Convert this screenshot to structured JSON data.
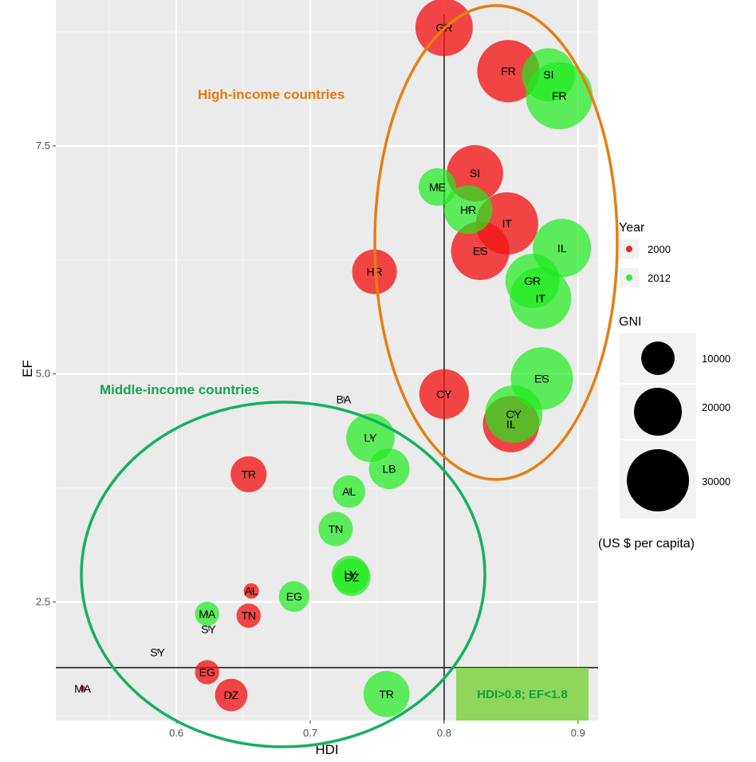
{
  "chart_data": {
    "type": "scatter",
    "xlabel": "HDI",
    "ylabel": "EF",
    "xlim": [
      0.51,
      0.915
    ],
    "ylim": [
      1.2,
      9.1
    ],
    "x_ticks": [
      "0.6",
      "0.7",
      "0.8",
      "0.9"
    ],
    "y_ticks": [
      "2.5",
      "5.0",
      "7.5"
    ],
    "reference_lines": {
      "vertical_x": 0.8,
      "horizontal_y": 1.78
    },
    "colors": {
      "2000": "#f00000",
      "2012": "#22ee22",
      "panel": "#ebebeb"
    },
    "legend_year": {
      "title": "Year",
      "items": [
        "2000",
        "2012"
      ]
    },
    "legend_gni": {
      "title": "GNI",
      "items": [
        "10000",
        "20000",
        "30000"
      ]
    },
    "gni_unit": "(US $ per capita)",
    "annotations": {
      "high_income": "High-income countries",
      "middle_income": "Middle-income countries",
      "threshold_box": "HDI>0.8; EF<1.8"
    },
    "series": [
      {
        "name": "2000",
        "points": [
          {
            "label": "GR",
            "x": 0.8,
            "y": 8.8,
            "gni": 28000
          },
          {
            "label": "FR",
            "x": 0.848,
            "y": 8.32,
            "gni": 33000
          },
          {
            "label": "SI",
            "x": 0.823,
            "y": 7.2,
            "gni": 27000
          },
          {
            "label": "IT",
            "x": 0.847,
            "y": 6.65,
            "gni": 33000
          },
          {
            "label": "ES",
            "x": 0.827,
            "y": 6.35,
            "gni": 29000
          },
          {
            "label": "HR",
            "x": 0.748,
            "y": 6.12,
            "gni": 17000
          },
          {
            "label": "CY",
            "x": 0.8,
            "y": 4.78,
            "gni": 21000
          },
          {
            "label": "IL",
            "x": 0.85,
            "y": 4.45,
            "gni": 27000
          },
          {
            "label": "TR",
            "x": 0.654,
            "y": 3.9,
            "gni": 11000
          },
          {
            "label": "AL",
            "x": 0.656,
            "y": 2.62,
            "gni": 2000
          },
          {
            "label": "TN",
            "x": 0.654,
            "y": 2.35,
            "gni": 5000
          },
          {
            "label": "EG",
            "x": 0.623,
            "y": 1.73,
            "gni": 5000
          },
          {
            "label": "DZ",
            "x": 0.641,
            "y": 1.48,
            "gni": 9000
          },
          {
            "label": "MA",
            "x": 0.53,
            "y": 1.55,
            "gni": 300
          }
        ]
      },
      {
        "name": "2012",
        "points": [
          {
            "label": "SI",
            "x": 0.878,
            "y": 8.28,
            "gni": 24000
          },
          {
            "label": "FR",
            "x": 0.886,
            "y": 8.05,
            "gni": 38000
          },
          {
            "label": "ME",
            "x": 0.795,
            "y": 7.05,
            "gni": 12000
          },
          {
            "label": "HR",
            "x": 0.818,
            "y": 6.8,
            "gni": 20000
          },
          {
            "label": "IL",
            "x": 0.888,
            "y": 6.38,
            "gni": 29000
          },
          {
            "label": "GR",
            "x": 0.866,
            "y": 6.02,
            "gni": 25000
          },
          {
            "label": "IT",
            "x": 0.872,
            "y": 5.83,
            "gni": 32000
          },
          {
            "label": "ES",
            "x": 0.873,
            "y": 4.95,
            "gni": 33000
          },
          {
            "label": "CY",
            "x": 0.852,
            "y": 4.56,
            "gni": 28000
          },
          {
            "label": "LY",
            "x": 0.745,
            "y": 4.3,
            "gni": 20000
          },
          {
            "label": "LB",
            "x": 0.759,
            "y": 3.96,
            "gni": 14000
          },
          {
            "label": "AL",
            "x": 0.729,
            "y": 3.71,
            "gni": 9000
          },
          {
            "label": "TN",
            "x": 0.719,
            "y": 3.3,
            "gni": 10000
          },
          {
            "label": "LY",
            "x": 0.73,
            "y": 2.8,
            "gni": 12000
          },
          {
            "label": "DZ",
            "x": 0.731,
            "y": 2.77,
            "gni": 12000
          },
          {
            "label": "EG",
            "x": 0.688,
            "y": 2.56,
            "gni": 8000
          },
          {
            "label": "MA",
            "x": 0.623,
            "y": 2.37,
            "gni": 5000
          },
          {
            "label": "TR",
            "x": 0.757,
            "y": 1.49,
            "gni": 18000
          }
        ]
      },
      {
        "name": "unmarked",
        "points": [
          {
            "label": "BA",
            "x": 0.725,
            "y": 4.72,
            "gni": 0
          },
          {
            "label": "SY",
            "x": 0.624,
            "y": 2.2,
            "gni": 0
          },
          {
            "label": "SY",
            "x": 0.586,
            "y": 1.95,
            "gni": 0
          }
        ]
      }
    ]
  }
}
